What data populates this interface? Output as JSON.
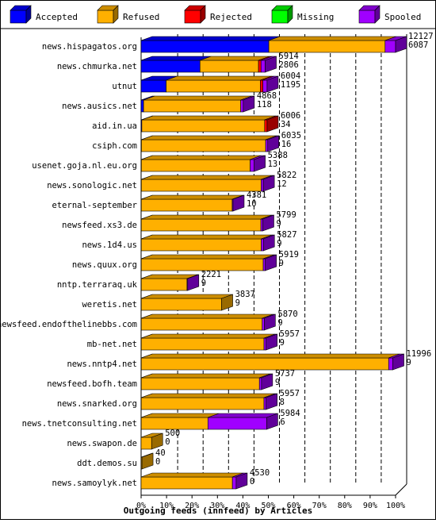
{
  "chart_data": {
    "type": "bar",
    "title": "",
    "xlabel": "Outgoing feeds (innfeed) by Articles",
    "ylabel": "",
    "orientation": "horizontal",
    "stacked": true,
    "legend_position": "top",
    "x_ticks": [
      "0%",
      "10%",
      "20%",
      "30%",
      "40%",
      "50%",
      "60%",
      "70%",
      "80%",
      "90%",
      "100%"
    ],
    "xlim": [
      0,
      100
    ],
    "series": [
      {
        "name": "Accepted",
        "color": "#0000ff"
      },
      {
        "name": "Refused",
        "color": "#ffb000"
      },
      {
        "name": "Rejected",
        "color": "#ff0000"
      },
      {
        "name": "Missing",
        "color": "#00ff00"
      },
      {
        "name": "Spooled",
        "color": "#a000ff"
      }
    ],
    "categories": [
      "news.hispagatos.org",
      "news.chmurka.net",
      "utnut",
      "news.ausics.net",
      "aid.in.ua",
      "csiph.com",
      "usenet.goja.nl.eu.org",
      "news.sonologic.net",
      "eternal-september",
      "newsfeed.xs3.de",
      "news.1d4.us",
      "news.quux.org",
      "nntp.terraraq.uk",
      "weretis.net",
      "newsfeed.endofthelinebbs.com",
      "mb-net.net",
      "news.nntp4.net",
      "newsfeed.bofh.team",
      "news.snarked.org",
      "news.tnetconsulting.net",
      "news.swapon.de",
      "ddt.demos.su",
      "news.samoylyk.net"
    ],
    "totals": [
      12127,
      5914,
      6004,
      4868,
      6006,
      6035,
      5388,
      5822,
      4381,
      5799,
      5827,
      5919,
      2221,
      3837,
      5870,
      5957,
      11996,
      5737,
      5957,
      5984,
      500,
      40,
      4530
    ],
    "accepted": [
      6087,
      2806,
      1195,
      118,
      34,
      16,
      13,
      12,
      10,
      9,
      9,
      9,
      9,
      9,
      9,
      9,
      9,
      9,
      8,
      6,
      0,
      0,
      0
    ],
    "refused": [
      5540,
      2788,
      4489,
      4630,
      5852,
      5919,
      5185,
      5710,
      4331,
      5700,
      5715,
      5810,
      2179,
      3828,
      5761,
      5848,
      11787,
      5628,
      5849,
      3178,
      500,
      40,
      4350
    ],
    "rejected": [
      0,
      120,
      120,
      0,
      120,
      0,
      0,
      0,
      0,
      0,
      0,
      0,
      0,
      0,
      0,
      0,
      0,
      0,
      0,
      0,
      0,
      0,
      0
    ],
    "missing": [
      0,
      0,
      0,
      0,
      0,
      0,
      0,
      0,
      0,
      0,
      0,
      0,
      0,
      0,
      0,
      0,
      0,
      0,
      0,
      0,
      0,
      0,
      0
    ],
    "spooled": [
      500,
      200,
      200,
      120,
      0,
      100,
      190,
      100,
      40,
      90,
      103,
      100,
      33,
      0,
      100,
      100,
      200,
      100,
      100,
      2800,
      0,
      0,
      180
    ],
    "label_values": [
      [
        "12127",
        "6087"
      ],
      [
        "5914",
        "2806"
      ],
      [
        "6004",
        "1195"
      ],
      [
        "4868",
        "118"
      ],
      [
        "6006",
        "34"
      ],
      [
        "6035",
        "16"
      ],
      [
        "5388",
        "13"
      ],
      [
        "5822",
        "12"
      ],
      [
        "4381",
        "10"
      ],
      [
        "5799",
        "9"
      ],
      [
        "5827",
        "9"
      ],
      [
        "5919",
        "9"
      ],
      [
        "2221",
        "9"
      ],
      [
        "3837",
        "9"
      ],
      [
        "5870",
        "9"
      ],
      [
        "5957",
        "9"
      ],
      [
        "11996",
        "9"
      ],
      [
        "5737",
        "9"
      ],
      [
        "5957",
        "8"
      ],
      [
        "5984",
        "6"
      ],
      [
        "500",
        "0"
      ],
      [
        "40",
        "0"
      ],
      [
        "4530",
        "0"
      ]
    ],
    "max_total": 12127
  }
}
